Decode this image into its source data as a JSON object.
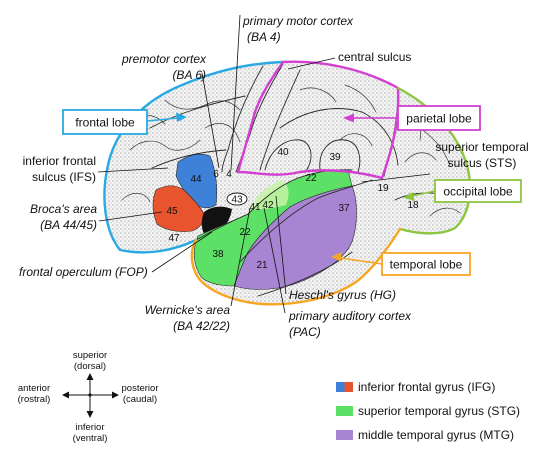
{
  "annotations": {
    "primary_motor_cortex": {
      "name": "primary motor cortex",
      "area": "(BA 4)"
    },
    "premotor_cortex": {
      "name": "premotor cortex",
      "area": "(BA 6)"
    },
    "central_sulcus": {
      "name": "central sulcus"
    },
    "inferior_frontal_sulcus": {
      "line1": "inferior frontal",
      "line2": "sulcus (IFS)"
    },
    "superior_temporal_sulcus": {
      "line1": "superior temporal",
      "line2": "sulcus (STS)"
    },
    "brocas_area": {
      "name": "Broca's area",
      "area": "(BA 44/45)"
    },
    "frontal_operculum": {
      "name": "frontal operculum (FOP)"
    },
    "heschls_gyrus": {
      "name": "Heschl's gyrus (HG)"
    },
    "wernickes_area": {
      "name": "Wernicke's area",
      "area": "(BA 42/22)"
    },
    "primary_auditory_cortex": {
      "name": "primary auditory cortex",
      "area": "(PAC)"
    }
  },
  "lobes": {
    "frontal": {
      "label": "frontal lobe",
      "color": "#29a9e1"
    },
    "parietal": {
      "label": "parietal lobe",
      "color": "#d33fd3"
    },
    "occipital": {
      "label": "occipital lobe",
      "color": "#8cc63f"
    },
    "temporal": {
      "label": "temporal lobe",
      "color": "#f6a623"
    }
  },
  "brodmann_areas": [
    "44",
    "45",
    "47",
    "6",
    "4",
    "43",
    "41",
    "42",
    "40",
    "39",
    "22",
    "22",
    "37",
    "38",
    "21",
    "19",
    "18"
  ],
  "compass": {
    "up": {
      "term": "superior",
      "alt": "(dorsal)"
    },
    "down": {
      "term": "inferior",
      "alt": "(ventral)"
    },
    "left": {
      "term": "anterior",
      "alt": "(rostral)"
    },
    "right": {
      "term": "posterior",
      "alt": "(caudal)"
    }
  },
  "legend": [
    {
      "label": "inferior frontal gyrus (IFG)",
      "colors": [
        "#3d82d8",
        "#e8542d"
      ]
    },
    {
      "label": "superior temporal gyrus (STG)",
      "color": "#5ce065"
    },
    {
      "label": "middle temporal gyrus (MTG)",
      "color": "#a885d2"
    }
  ]
}
